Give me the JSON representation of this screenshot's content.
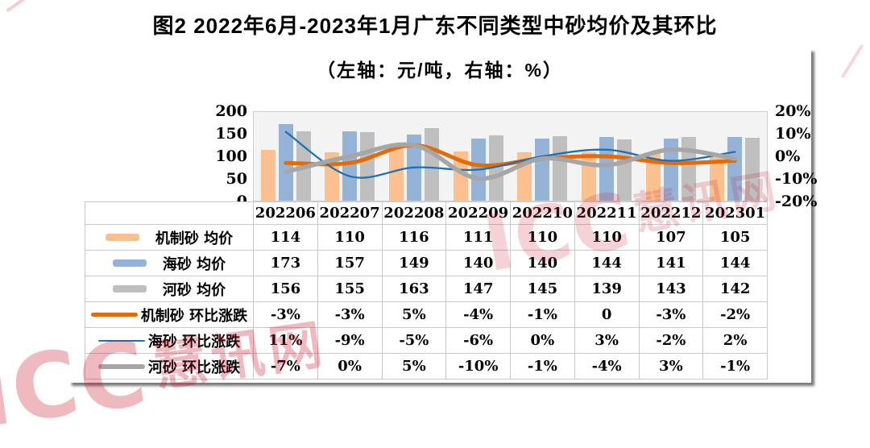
{
  "page": {
    "title": "图2 2022年6月-2023年1月广东不同类型中砂均价及其环比",
    "subtitle": "（左轴：元/吨，右轴：%）"
  },
  "watermarks": {
    "brand": "ICC",
    "site": "慧讯网"
  },
  "chart_data": {
    "type": "combo-bar-line",
    "categories": [
      "202206",
      "202207",
      "202208",
      "202209",
      "202210",
      "202211",
      "202212",
      "202301"
    ],
    "left_axis": {
      "unit": "元/吨",
      "min": 0,
      "max": 200,
      "ticks": [
        "200",
        "150",
        "100",
        "50",
        "0"
      ]
    },
    "right_axis": {
      "unit": "%",
      "min": -20,
      "max": 20,
      "ticks": [
        "20%",
        "10%",
        "0%",
        "-10%",
        "-20%"
      ]
    },
    "grid": "off",
    "legend_position": "table-left",
    "series": [
      {
        "name": "机制砂 均价",
        "kind": "bar",
        "axis": "left",
        "color": "#FAC090",
        "values": [
          114,
          110,
          116,
          111,
          110,
          110,
          107,
          105
        ],
        "cells": [
          "114",
          "110",
          "116",
          "111",
          "110",
          "110",
          "107",
          "105"
        ]
      },
      {
        "name": "海砂 均价",
        "kind": "bar",
        "axis": "left",
        "color": "#95B3D7",
        "values": [
          173,
          157,
          149,
          140,
          140,
          144,
          141,
          144
        ],
        "cells": [
          "173",
          "157",
          "149",
          "140",
          "140",
          "144",
          "141",
          "144"
        ]
      },
      {
        "name": "河砂 均价",
        "kind": "bar",
        "axis": "left",
        "color": "#BFBFBF",
        "values": [
          156,
          155,
          163,
          147,
          145,
          139,
          143,
          142
        ],
        "cells": [
          "156",
          "155",
          "163",
          "147",
          "145",
          "139",
          "143",
          "142"
        ]
      },
      {
        "name": "机制砂 环比涨跌",
        "kind": "line",
        "axis": "right",
        "color": "#E36C09",
        "thickness": 5,
        "values": [
          -3,
          -3,
          5,
          -4,
          -1,
          0,
          -3,
          -2
        ],
        "cells": [
          "-3%",
          "-3%",
          "5%",
          "-4%",
          "-1%",
          "0",
          "-3%",
          "-2%"
        ]
      },
      {
        "name": "海砂 环比涨跌",
        "kind": "line",
        "axis": "right",
        "color": "#1F6FB5",
        "thickness": 2.3,
        "values": [
          11,
          -9,
          -5,
          -6,
          0,
          3,
          -2,
          2
        ],
        "cells": [
          "11%",
          "-9%",
          "-5%",
          "-6%",
          "0%",
          "3%",
          "-2%",
          "2%"
        ]
      },
      {
        "name": "河砂 环比涨跌",
        "kind": "line",
        "axis": "right",
        "color": "#A6A6A6",
        "thickness": 5.5,
        "values": [
          -7,
          0,
          5,
          -10,
          -1,
          -4,
          3,
          -1
        ],
        "cells": [
          "-7%",
          "0%",
          "5%",
          "-10%",
          "-1%",
          "-4%",
          "3%",
          "-1%"
        ]
      }
    ]
  }
}
